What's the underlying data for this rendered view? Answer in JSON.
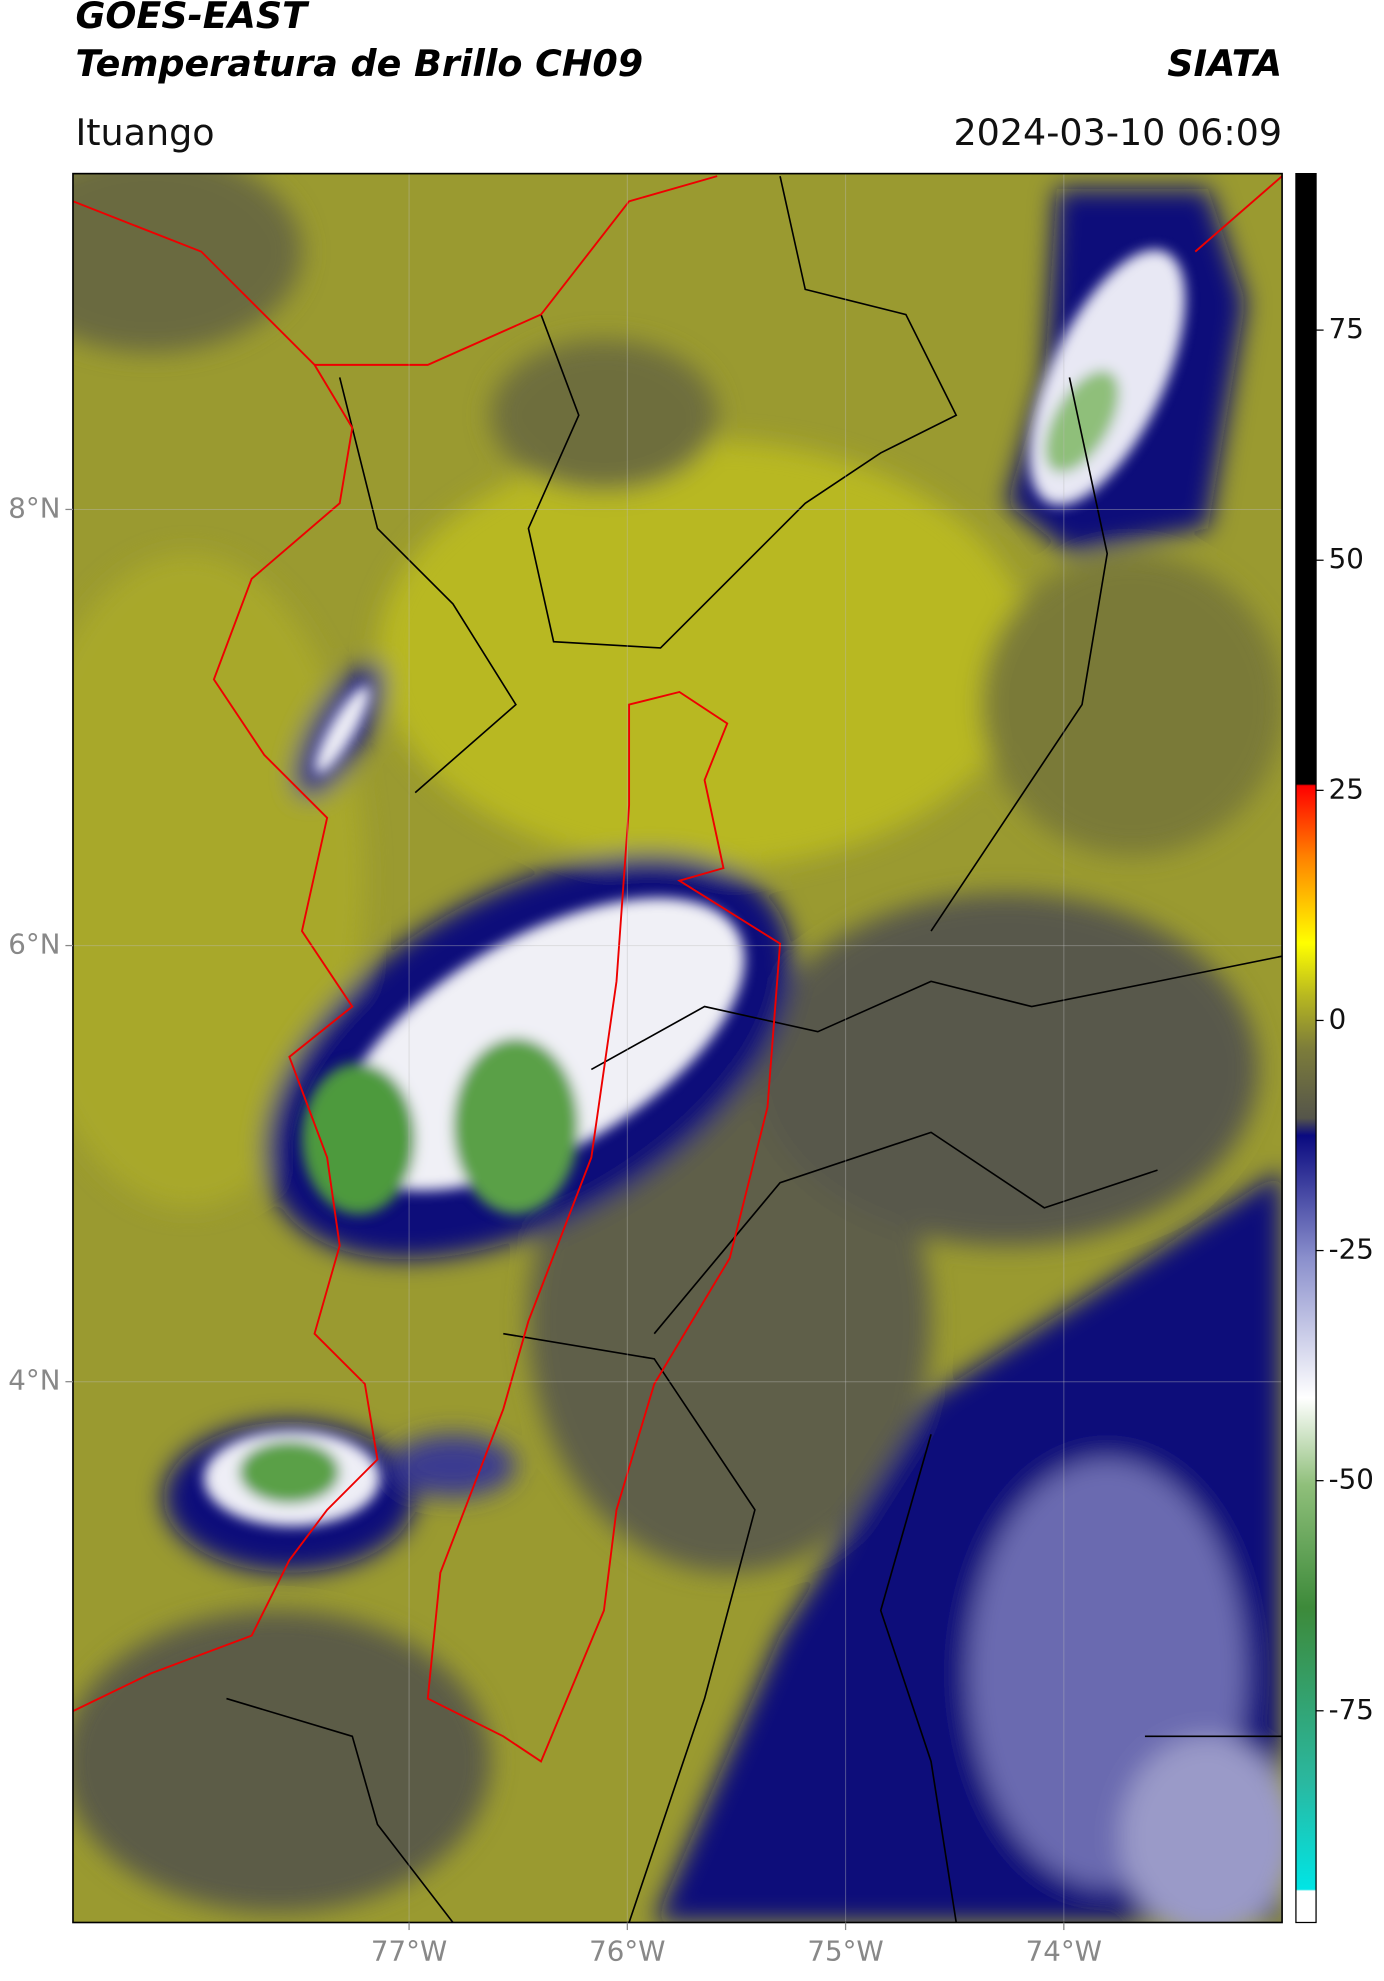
{
  "header": {
    "title_line1": "GOES-EAST",
    "title_line2": "Temperatura de Brillo CH09",
    "source": "SIATA",
    "location": "Ituango",
    "datetime": "2024-03-10 06:09"
  },
  "map": {
    "lat_range": [
      1.52,
      9.54
    ],
    "lon_range": [
      -78.54,
      -73.0
    ],
    "lat_ticks": [
      {
        "value": 8,
        "label": "8°N"
      },
      {
        "value": 6,
        "label": "6°N"
      },
      {
        "value": 4,
        "label": "4°N"
      }
    ],
    "lon_ticks": [
      {
        "value": -77,
        "label": "77°W"
      },
      {
        "value": -76,
        "label": "76°W"
      },
      {
        "value": -75,
        "label": "75°W"
      },
      {
        "value": -74,
        "label": "74°W"
      }
    ],
    "grid": true
  },
  "colorbar": {
    "range": [
      -98,
      92
    ],
    "ticks": [
      75,
      50,
      25,
      0,
      -25,
      -50,
      -75
    ]
  }
}
